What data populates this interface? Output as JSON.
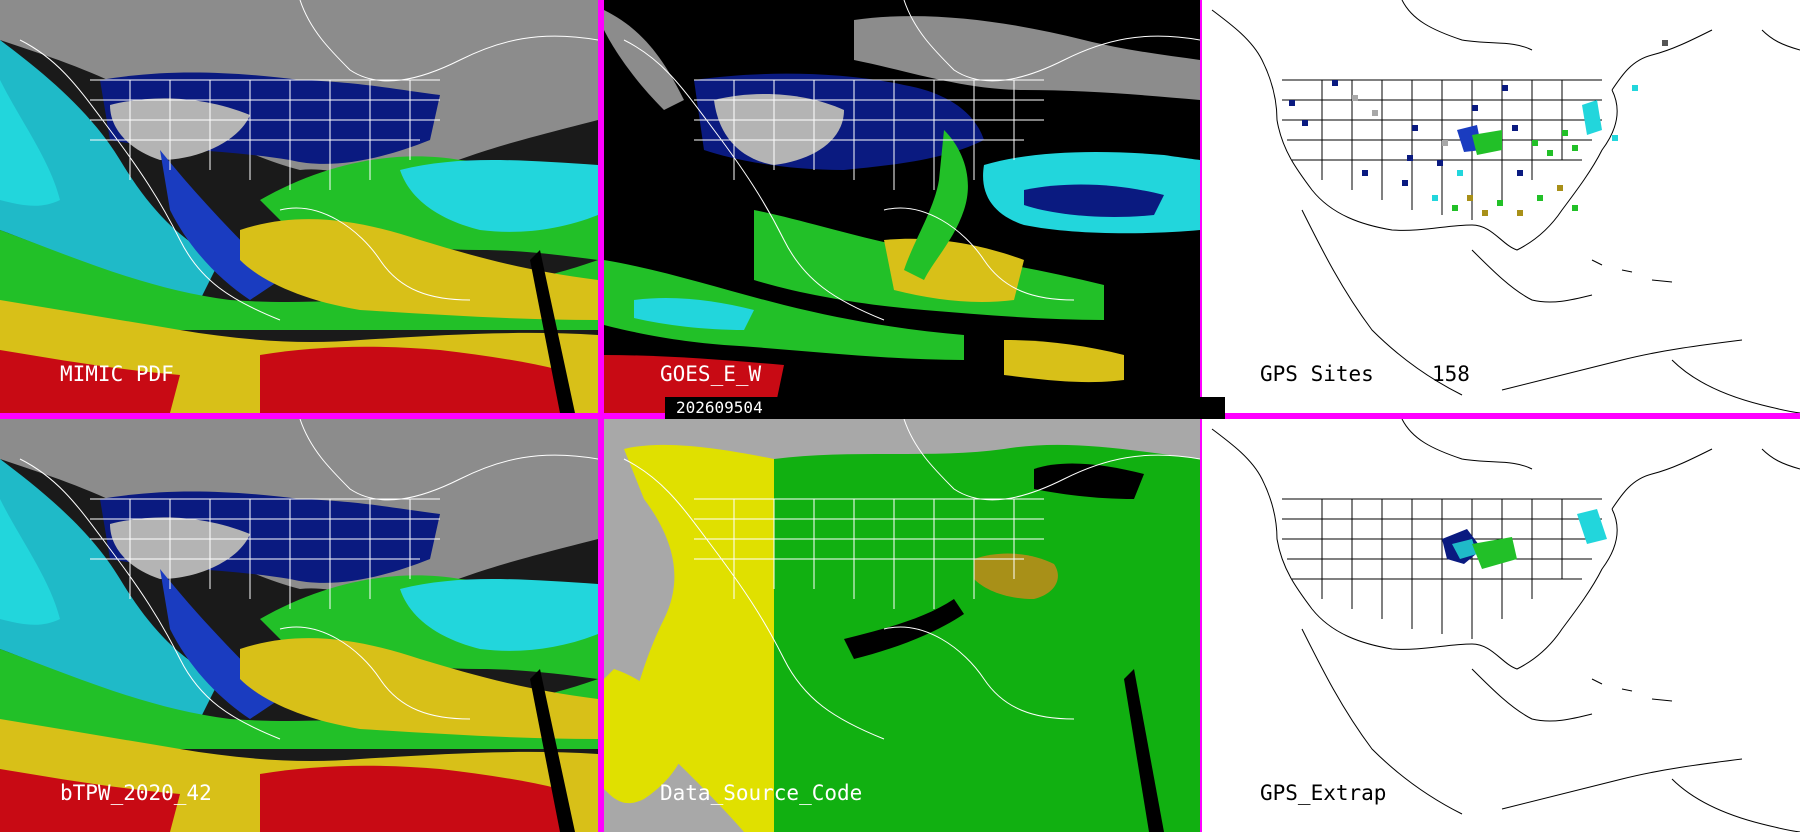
{
  "panels": {
    "mimic": {
      "label": "MIMIC PDF"
    },
    "goes": {
      "label": "GOES_E_W"
    },
    "gps_sites": {
      "label": "GPS Sites",
      "count": "158"
    },
    "btpw": {
      "label": "bTPW_2020_42"
    },
    "data_source": {
      "label": "Data_Source_Code"
    },
    "gps_extrap": {
      "label": "GPS_Extrap"
    }
  },
  "timestamp": "202609504",
  "colors": {
    "divider": "#ff00ff",
    "moisture_low": "#9a9a9a",
    "moisture_dry_blue": "#0a1a80",
    "moisture_mid_blue": "#1a3cc0",
    "moisture_cyan": "#22d6dc",
    "moisture_green": "#22c028",
    "moisture_yellow": "#d8c018",
    "moisture_red": "#c80a14",
    "source_gray": "#a8a8a8",
    "source_yellow": "#e0e000",
    "source_green": "#11b011",
    "source_olive": "#a89018"
  }
}
